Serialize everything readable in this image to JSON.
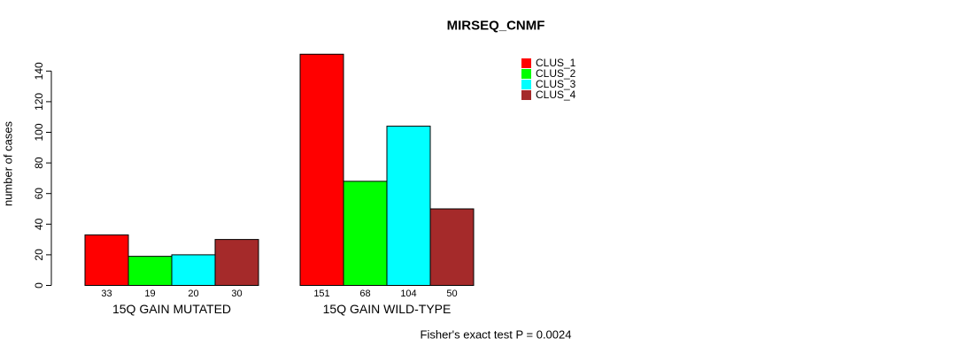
{
  "page": {
    "background": "#ffffff",
    "text_color": "#000000"
  },
  "chart_data": {
    "type": "bar",
    "title": "MIRSEQ_CNMF",
    "ylabel": "number of cases",
    "xlabel": "",
    "ylim": [
      0,
      151
    ],
    "yticks": [
      0,
      20,
      40,
      60,
      80,
      100,
      120,
      140
    ],
    "grid": false,
    "bar_border_color": "#000000",
    "legend_position": "top-right",
    "legend_border": false,
    "categories": [
      "15Q GAIN MUTATED",
      "15Q GAIN WILD-TYPE"
    ],
    "series": [
      {
        "name": "CLUS_1",
        "color": "#ff0000",
        "values": [
          33,
          151
        ]
      },
      {
        "name": "CLUS_2",
        "color": "#00ff00",
        "values": [
          19,
          68
        ]
      },
      {
        "name": "CLUS_3",
        "color": "#00ffff",
        "values": [
          20,
          104
        ]
      },
      {
        "name": "CLUS_4",
        "color": "#a52a2a",
        "values": [
          30,
          50
        ]
      }
    ],
    "bar_value_labels_visible": true,
    "annotation": "Fisher's exact test P = 0.0024"
  }
}
